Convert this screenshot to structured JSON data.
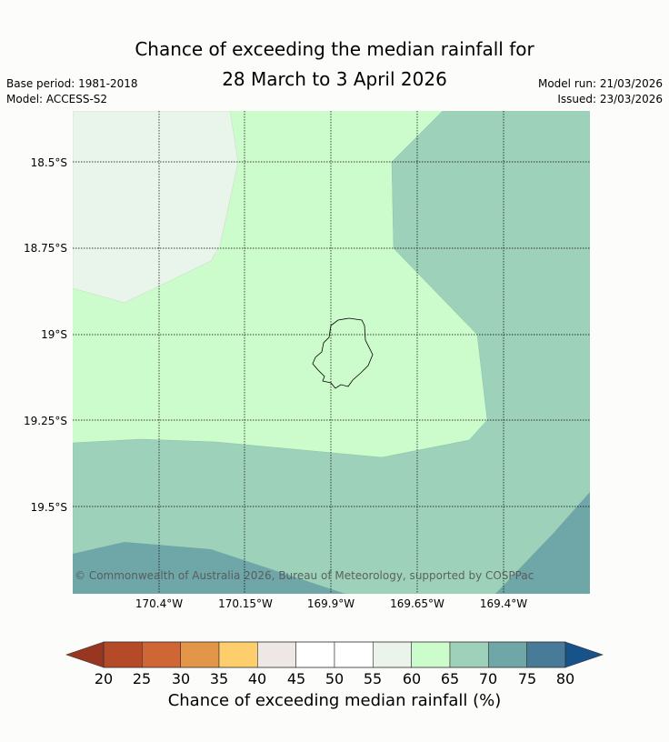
{
  "title": {
    "line1": "Chance of exceeding the median rainfall for",
    "line2": "28 March to 3 April 2026"
  },
  "meta": {
    "base_period": "Base period: 1981-2018",
    "model": "Model: ACCESS-S2",
    "model_run": "Model run: 21/03/2026",
    "issued": "Issued: 23/03/2026"
  },
  "map": {
    "latitude_labels": [
      "18.5°S",
      "18.75°S",
      "19°S",
      "19.25°S",
      "19.5°S"
    ],
    "longitude_labels": [
      "170.4°W",
      "170.15°W",
      "169.9°W",
      "169.65°W",
      "169.4°W"
    ],
    "copyright": "© Commonwealth of Australia 2026, Bureau of Meteorology, supported by COSPPac",
    "colors": {
      "c40_45": "#ebe9e6",
      "c55_60": "#e9f4ea",
      "c60_65": "#ccfccc",
      "c65_70": "#9dd1b9",
      "c70_75": "#6fa6a8"
    }
  },
  "colorbar": {
    "label": "Chance of exceeding median rainfall (%)",
    "ticks": [
      "20",
      "25",
      "30",
      "35",
      "40",
      "45",
      "50",
      "55",
      "60",
      "65",
      "70",
      "75",
      "80"
    ],
    "low_extend_color": "#993622",
    "high_extend_color": "#18528a",
    "bins": [
      {
        "range": "20-25",
        "color": "#b44a27"
      },
      {
        "range": "25-30",
        "color": "#d06535"
      },
      {
        "range": "30-35",
        "color": "#e39548"
      },
      {
        "range": "35-40",
        "color": "#fdce6b"
      },
      {
        "range": "40-45",
        "color": "#ede7e5"
      },
      {
        "range": "45-50",
        "color": "#ffffff"
      },
      {
        "range": "50-55",
        "color": "#ffffff"
      },
      {
        "range": "55-60",
        "color": "#eaf4ea"
      },
      {
        "range": "60-65",
        "color": "#ccfccc"
      },
      {
        "range": "65-70",
        "color": "#9dd1b9"
      },
      {
        "range": "70-75",
        "color": "#6fa6a8"
      },
      {
        "range": "75-80",
        "color": "#477b98"
      }
    ]
  }
}
